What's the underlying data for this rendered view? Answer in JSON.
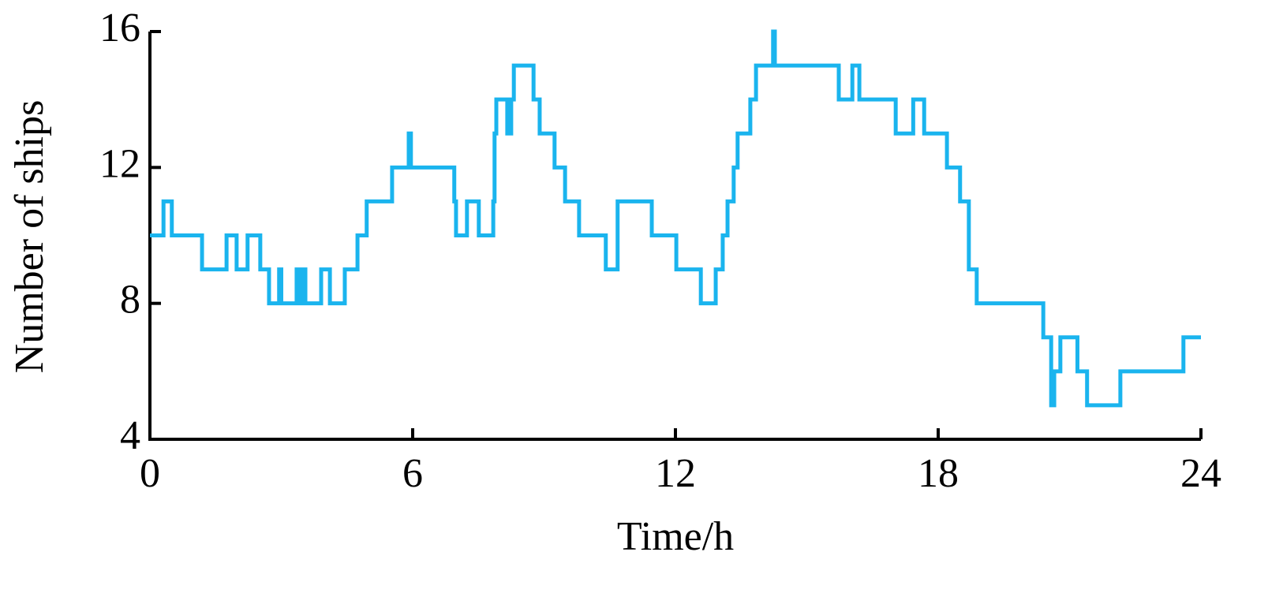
{
  "chart_data": {
    "type": "line",
    "step": "post",
    "x_label": "Time/h",
    "y_label": "Number of  ships",
    "xlim": [
      0,
      24
    ],
    "xticks": [
      0,
      6,
      12,
      18,
      24
    ],
    "ylim": [
      4,
      16
    ],
    "yticks": [
      4,
      8,
      12,
      16
    ],
    "series": [
      {
        "color": "#1ab4ee",
        "x": [
          0,
          0.31,
          0.5,
          1.19,
          1.75,
          1.98,
          2.23,
          2.52,
          2.72,
          2.95,
          3.0,
          3.35,
          3.42,
          3.5,
          3.55,
          3.91,
          4.11,
          4.45,
          4.74,
          4.95,
          5.53,
          5.91,
          5.96,
          6.95,
          6.99,
          7.24,
          7.51,
          7.84,
          7.87,
          7.91,
          8.16,
          8.25,
          8.31,
          8.76,
          8.9,
          9.24,
          9.48,
          9.8,
          10.41,
          10.68,
          11.46,
          12.02,
          12.58,
          12.92,
          13.08,
          13.19,
          13.33,
          13.42,
          13.71,
          13.84,
          14.23,
          14.27,
          15.73,
          16.04,
          16.2,
          17.03,
          17.43,
          17.68,
          18.2,
          18.5,
          18.7,
          18.88,
          20.4,
          20.58,
          20.65,
          20.79,
          21.18,
          21.4,
          22.16,
          23.6,
          24
        ],
        "values": [
          10,
          11,
          10,
          9,
          10,
          9,
          10,
          9,
          8,
          9,
          8,
          9,
          8,
          9,
          8,
          9,
          8,
          9,
          10,
          11,
          12,
          13,
          12,
          11,
          10,
          11,
          10,
          11,
          13,
          14,
          13,
          14,
          15,
          14,
          13,
          12,
          11,
          10,
          9,
          11,
          10,
          9,
          8,
          9,
          10,
          11,
          12,
          13,
          14,
          15,
          16,
          15,
          14,
          15,
          14,
          13,
          14,
          13,
          12,
          11,
          9,
          8,
          7,
          5,
          6,
          7,
          6,
          5,
          6,
          7,
          7
        ]
      }
    ]
  }
}
